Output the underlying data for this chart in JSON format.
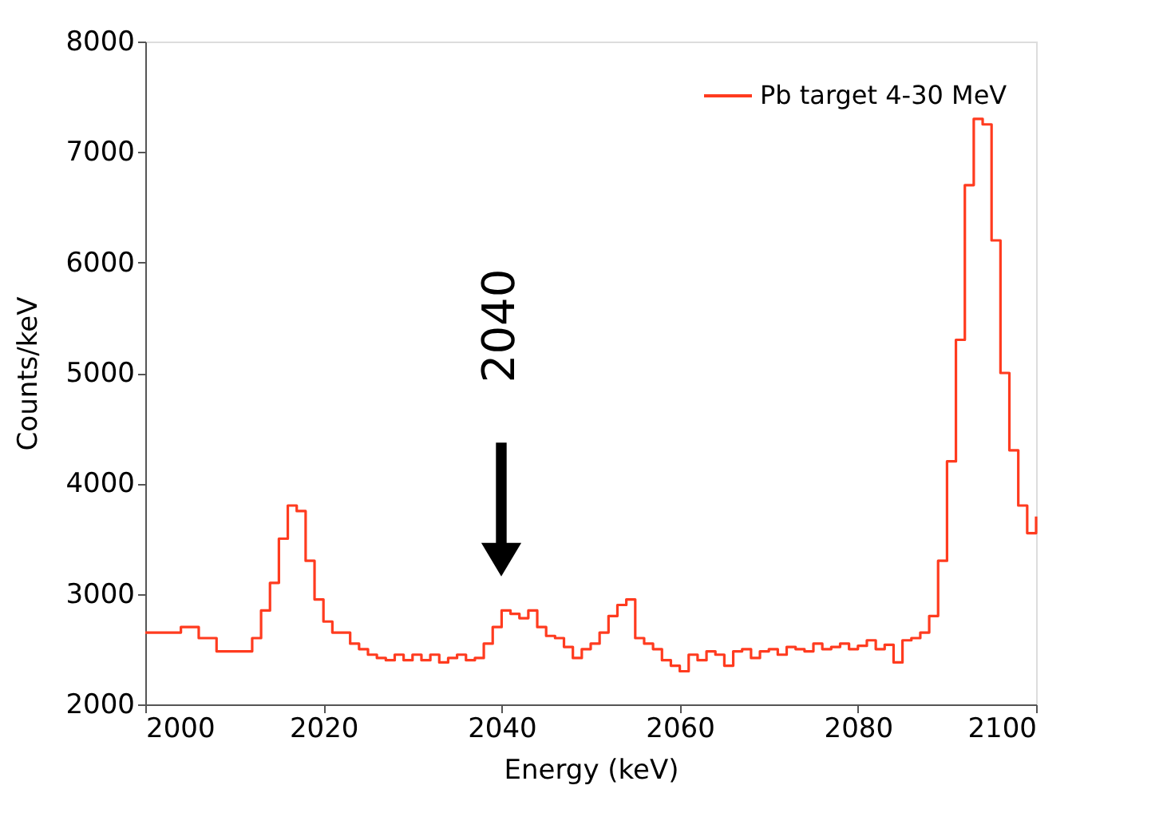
{
  "chart_data": {
    "type": "step",
    "xlabel": "Energy (keV)",
    "ylabel": "Counts/keV",
    "xlim": [
      2000,
      2100
    ],
    "ylim": [
      2000,
      8000
    ],
    "xticks": [
      2000,
      2020,
      2040,
      2060,
      2080,
      2100
    ],
    "yticks": [
      2000,
      3000,
      4000,
      5000,
      6000,
      7000,
      8000
    ],
    "grid": false,
    "legend": "top right",
    "line_style": "solid",
    "marker": "none",
    "annotations": [
      "2040"
    ],
    "series": [
      {
        "name": "Pb target 4-30 MeV",
        "color": "#ff3b1f",
        "x": [
          2000,
          2001,
          2002,
          2003,
          2004,
          2005,
          2006,
          2007,
          2008,
          2009,
          2010,
          2011,
          2012,
          2013,
          2014,
          2015,
          2016,
          2017,
          2018,
          2019,
          2020,
          2021,
          2022,
          2023,
          2024,
          2025,
          2026,
          2027,
          2028,
          2029,
          2030,
          2031,
          2032,
          2033,
          2034,
          2035,
          2036,
          2037,
          2038,
          2039,
          2040,
          2041,
          2042,
          2043,
          2044,
          2045,
          2046,
          2047,
          2048,
          2049,
          2050,
          2051,
          2052,
          2053,
          2054,
          2055,
          2056,
          2057,
          2058,
          2059,
          2060,
          2061,
          2062,
          2063,
          2064,
          2065,
          2066,
          2067,
          2068,
          2069,
          2070,
          2071,
          2072,
          2073,
          2074,
          2075,
          2076,
          2077,
          2078,
          2079,
          2080,
          2081,
          2082,
          2083,
          2084,
          2085,
          2086,
          2087,
          2088,
          2089,
          2090,
          2091,
          2092,
          2093,
          2094,
          2095,
          2096,
          2097,
          2098,
          2099,
          2100
        ],
        "values": [
          2650,
          2650,
          2650,
          2650,
          2700,
          2700,
          2600,
          2600,
          2480,
          2480,
          2480,
          2480,
          2600,
          2850,
          3100,
          3500,
          3800,
          3750,
          3300,
          2950,
          2750,
          2650,
          2650,
          2550,
          2500,
          2450,
          2420,
          2400,
          2450,
          2400,
          2450,
          2400,
          2450,
          2380,
          2420,
          2450,
          2400,
          2420,
          2550,
          2700,
          2850,
          2820,
          2780,
          2850,
          2700,
          2620,
          2600,
          2520,
          2420,
          2500,
          2550,
          2650,
          2800,
          2900,
          2950,
          2600,
          2550,
          2500,
          2400,
          2350,
          2300,
          2450,
          2400,
          2480,
          2450,
          2350,
          2480,
          2500,
          2420,
          2480,
          2500,
          2450,
          2520,
          2500,
          2480,
          2550,
          2500,
          2520,
          2550,
          2500,
          2530,
          2580,
          2500,
          2540,
          2380,
          2580,
          2600,
          2650,
          2800,
          3300,
          4200,
          5300,
          6700,
          7300,
          7250,
          6200,
          5000,
          4300,
          3800,
          3550,
          3700
        ]
      }
    ]
  }
}
